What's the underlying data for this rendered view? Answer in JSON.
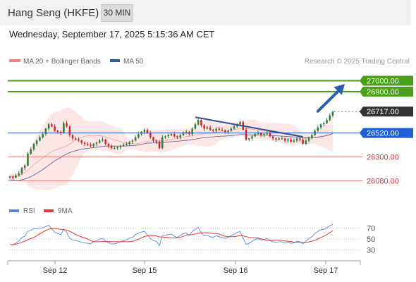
{
  "header": {
    "title": "Hang Seng (HKFE)",
    "timeframe": "30 MIN",
    "timestamp": "Wednesday, September 17, 2025 5:15:36 AM CET"
  },
  "colors": {
    "up": "#2e7d32",
    "down": "#c62828",
    "resistance": "#4aa01a",
    "support": "#f08080",
    "pivot": "#1e5fd6",
    "current": "#333333",
    "bollinger_fill": "#fde3e3",
    "ma50": "#2f4f8f",
    "rsi": "#5b84d6",
    "rsi_ma": "#e53935"
  },
  "chart_data": [
    {
      "type": "candlestick",
      "title": "Hang Seng (HKFE)",
      "legend": [
        {
          "name": "MA 20 + Bollinger Bands",
          "color": "#f08080"
        },
        {
          "name": "MA 50",
          "color": "#2f5c99"
        }
      ],
      "watermark": "Research © 2025 Trading Central",
      "x_ticks": [
        "Sep 12",
        "Sep 15",
        "Sep 16",
        "Sep 17"
      ],
      "price_range": [
        25980,
        27120
      ],
      "level_labels": [
        "27000.00",
        "26900.00",
        "26717.00",
        "26520.00",
        "26300.00",
        "26080.00"
      ],
      "levels": [
        {
          "value": 27000,
          "kind": "resistance"
        },
        {
          "value": 26900,
          "kind": "resistance"
        },
        {
          "value": 26717,
          "kind": "current"
        },
        {
          "value": 26520,
          "kind": "pivot"
        },
        {
          "value": 26300,
          "kind": "support"
        },
        {
          "value": 26080,
          "kind": "support"
        }
      ],
      "trendline": {
        "from": {
          "bar": 62,
          "price": 26665
        },
        "to": {
          "bar": 98,
          "price": 26485
        }
      },
      "target_arrow": {
        "from": {
          "bar": 103,
          "price": 26720
        },
        "to": {
          "bar": 112,
          "price": 26970
        }
      },
      "closes": [
        26120,
        26110,
        26130,
        26150,
        26200,
        26220,
        26330,
        26370,
        26420,
        26450,
        26480,
        26510,
        26560,
        26600,
        26580,
        26540,
        26530,
        26520,
        26610,
        26580,
        26500,
        26470,
        26460,
        26450,
        26430,
        26420,
        26410,
        26400,
        26420,
        26430,
        26450,
        26460,
        26420,
        26400,
        26380,
        26380,
        26390,
        26400,
        26410,
        26420,
        26440,
        26450,
        26480,
        26510,
        26530,
        26550,
        26520,
        26480,
        26450,
        26440,
        26380,
        26480,
        26490,
        26500,
        26510,
        26490,
        26480,
        26500,
        26520,
        26530,
        26510,
        26560,
        26600,
        26640,
        26590,
        26560,
        26570,
        26550,
        26540,
        26560,
        26550,
        26545,
        26530,
        26540,
        26560,
        26580,
        26600,
        26620,
        26550,
        26460,
        26470,
        26490,
        26510,
        26520,
        26500,
        26510,
        26520,
        26490,
        26470,
        26460,
        26470,
        26470,
        26450,
        26460,
        26440,
        26450,
        26470,
        26460,
        26420,
        26450,
        26480,
        26500,
        26540,
        26570,
        26600,
        26610,
        26640,
        26680,
        26717
      ],
      "ma50": [
        26080,
        26080,
        26081,
        26084,
        26090,
        26097,
        26107,
        26119,
        26133,
        26149,
        26166,
        26184,
        26204,
        26225,
        26245,
        26263,
        26280,
        26295,
        26313,
        26328,
        26339,
        26349,
        26357,
        26364,
        26370,
        26375,
        26379,
        26382,
        26386,
        26389,
        26393,
        26397,
        26399,
        26400,
        26400,
        26400,
        26400,
        26400,
        26400,
        26401,
        26402,
        26404,
        26407,
        26411,
        26416,
        26422,
        26426,
        26428,
        26429,
        26430,
        26428,
        26431,
        26434,
        26437,
        26440,
        26442,
        26444,
        26447,
        26450,
        26453,
        26455,
        26459,
        26464,
        26470,
        26474,
        26477,
        26480,
        26482,
        26484,
        26487,
        26489,
        26491,
        26492,
        26494,
        26496,
        26499,
        26502,
        26505,
        26506,
        26504,
        26503,
        26502,
        26502,
        26502,
        26501,
        26500,
        26500,
        26498,
        26496,
        26494,
        26493,
        26491,
        26489,
        26487,
        26485,
        26484,
        26483,
        26481,
        26478,
        26477,
        26477,
        26477,
        26479,
        26482,
        26487,
        26491,
        26497,
        26505,
        26515
      ],
      "rsi_ma_legend": [
        "RSI",
        "9MA"
      ],
      "rsi_ticks": [
        70,
        50,
        30
      ],
      "rsi_range": [
        15,
        85
      ],
      "rsi": [
        40,
        39,
        43,
        46,
        53,
        55,
        64,
        66,
        69,
        69,
        70,
        71,
        73,
        75,
        69,
        62,
        60,
        58,
        68,
        62,
        51,
        48,
        47,
        46,
        44,
        43,
        42,
        41,
        45,
        47,
        50,
        51,
        46,
        43,
        41,
        41,
        43,
        45,
        47,
        48,
        52,
        53,
        58,
        61,
        63,
        64,
        57,
        51,
        47,
        46,
        38,
        56,
        57,
        58,
        59,
        55,
        53,
        57,
        60,
        61,
        57,
        64,
        68,
        71,
        61,
        56,
        57,
        54,
        53,
        56,
        54,
        53,
        51,
        53,
        56,
        59,
        62,
        64,
        51,
        40,
        42,
        46,
        49,
        51,
        48,
        49,
        51,
        47,
        45,
        44,
        45,
        45,
        43,
        44,
        42,
        43,
        46,
        45,
        41,
        46,
        51,
        54,
        60,
        64,
        67,
        68,
        71,
        74,
        77
      ]
    }
  ]
}
